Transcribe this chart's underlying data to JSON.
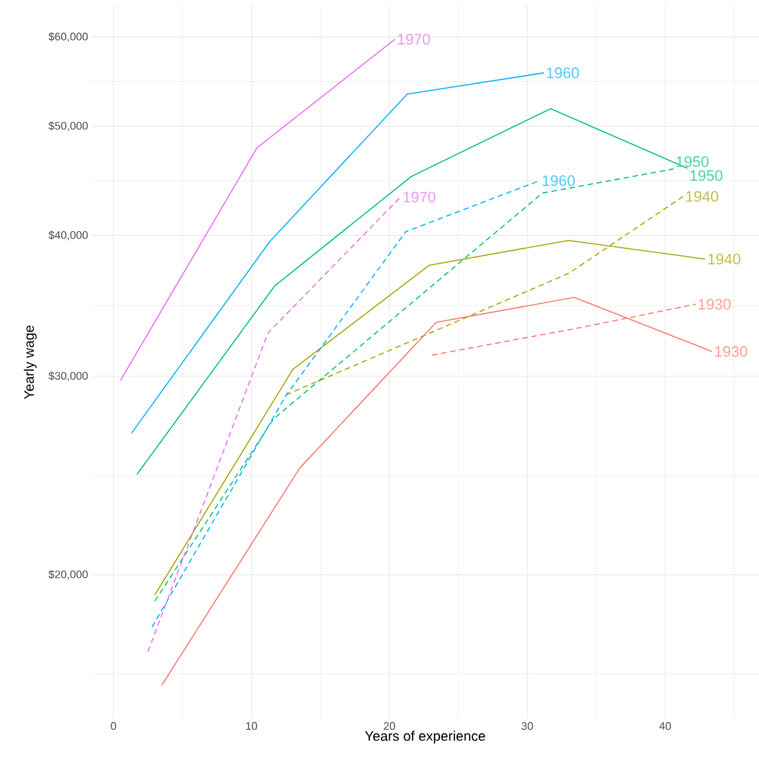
{
  "chart_data": {
    "type": "line",
    "xlabel": "Years of experience",
    "ylabel": "Yearly wage",
    "log": "y",
    "grid": true,
    "xlim": [
      -1.6,
      46.8
    ],
    "ylim": [
      14900,
      64000
    ],
    "xticks": [
      0,
      10,
      20,
      30,
      40
    ],
    "yticks": [
      {
        "value": 20000,
        "label": "$20,000"
      },
      {
        "value": 30000,
        "label": "$30,000"
      },
      {
        "value": 40000,
        "label": "$40,000"
      },
      {
        "value": 50000,
        "label": "$50,000"
      },
      {
        "value": 60000,
        "label": "$60,000"
      }
    ],
    "series": [
      {
        "name": "1930",
        "color": "#F8766D",
        "line_style": "solid",
        "x": [
          3.5,
          13.5,
          23.4,
          33.4,
          43.4
        ],
        "values": [
          15960,
          24870,
          33500,
          35250,
          31560
        ]
      },
      {
        "name": "1940",
        "color": "#A3A500",
        "line_style": "solid",
        "x": [
          3.0,
          13.0,
          22.9,
          33.0,
          42.9
        ],
        "values": [
          19200,
          30430,
          37650,
          39600,
          38120
        ]
      },
      {
        "name": "1950",
        "color": "#00BF7D",
        "line_style": "solid",
        "x": [
          1.7,
          11.7,
          21.6,
          31.7,
          41.6
        ],
        "values": [
          24550,
          36100,
          45130,
          51830,
          45890
        ]
      },
      {
        "name": "1960",
        "color": "#00B0F6",
        "line_style": "solid",
        "x": [
          1.3,
          11.3,
          21.3,
          31.2
        ],
        "values": [
          26700,
          39480,
          53400,
          55760
        ]
      },
      {
        "name": "1970",
        "color": "#E76BF3",
        "line_style": "solid",
        "x": [
          0.5,
          10.4,
          20.4
        ],
        "values": [
          29740,
          47840,
          59720
        ]
      },
      {
        "name": "1930",
        "color": "#F8766D",
        "line_style": "dashed",
        "x": [
          23.1,
          33.5,
          42.2
        ],
        "values": [
          31330,
          33080,
          34760
        ]
      },
      {
        "name": "1940",
        "color": "#A3A500",
        "line_style": "dashed",
        "x": [
          12.5,
          33.0,
          41.3
        ],
        "values": [
          28880,
          37020,
          43320
        ]
      },
      {
        "name": "1950",
        "color": "#00BF7D",
        "line_style": "dashed",
        "x": [
          3.0,
          11.6,
          31.1,
          40.6
        ],
        "values": [
          18960,
          27500,
          43620,
          45820
        ]
      },
      {
        "name": "1960",
        "color": "#00B0F6",
        "line_style": "dashed",
        "x": [
          2.8,
          12.5,
          21.2,
          30.9
        ],
        "values": [
          17980,
          28840,
          40320,
          44740
        ]
      },
      {
        "name": "1970",
        "color": "#E76BF3",
        "line_style": "dashed",
        "x": [
          2.5,
          11.2,
          20.8
        ],
        "values": [
          17100,
          32780,
          43260
        ]
      }
    ]
  }
}
